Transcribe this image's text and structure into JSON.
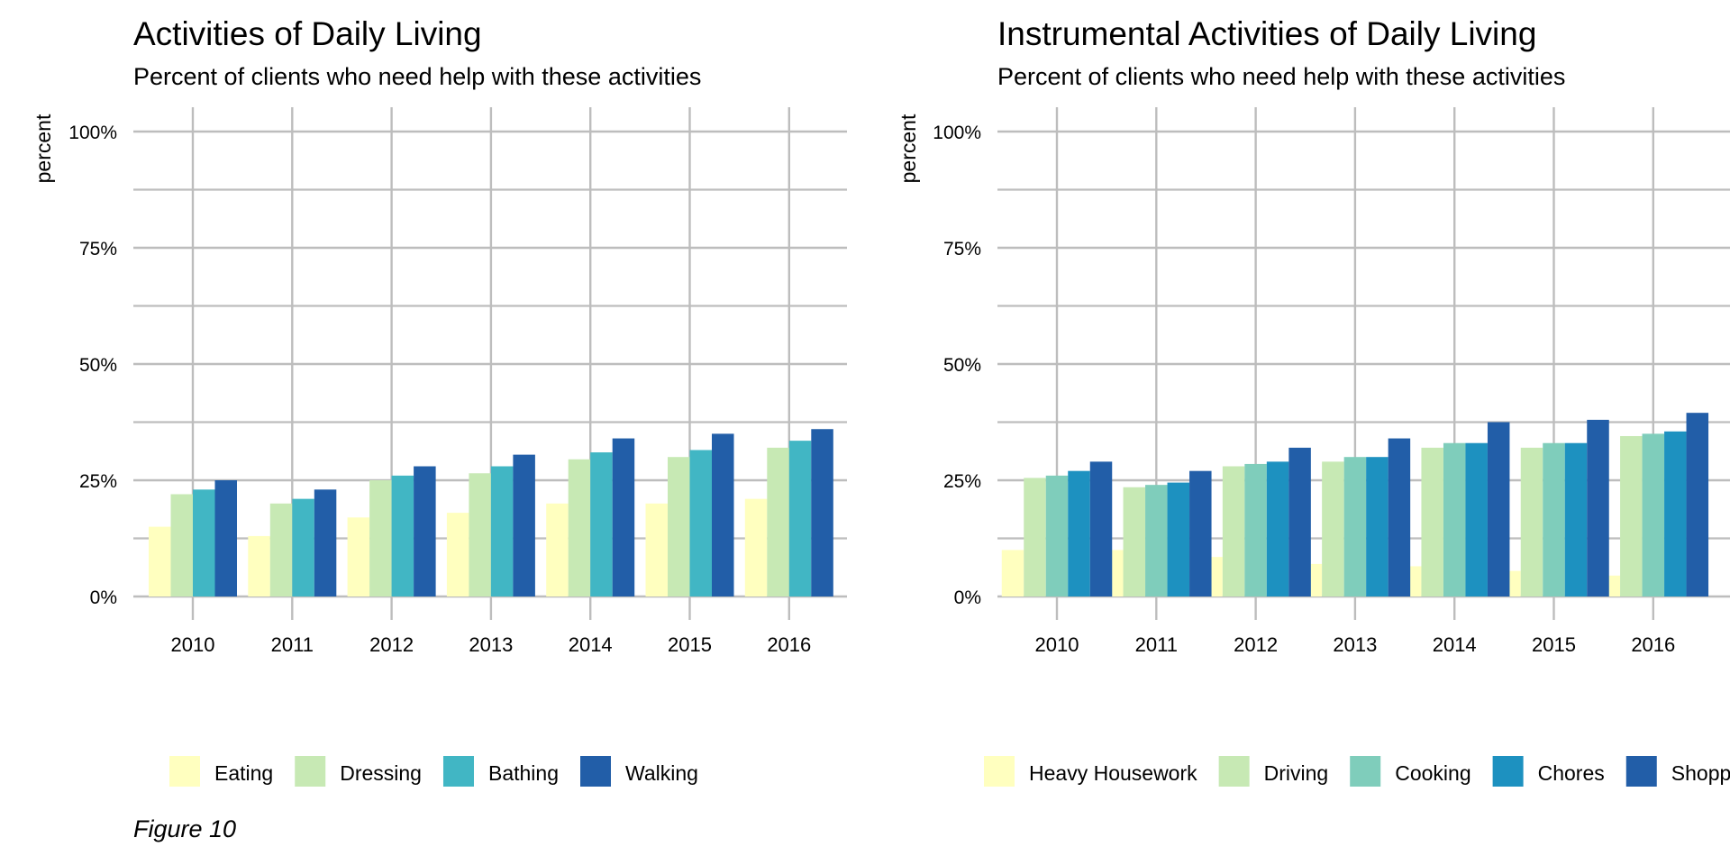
{
  "caption": "Figure 10",
  "chart_data": [
    {
      "type": "bar",
      "title": "Activities of Daily Living",
      "subtitle": "Percent of clients who need help with these activities",
      "xlabel": "",
      "ylabel": "percent",
      "ylim": [
        0,
        100
      ],
      "y_ticks": [
        "0%",
        "25%",
        "50%",
        "75%",
        "100%"
      ],
      "grid": true,
      "legend_position": "bottom",
      "categories": [
        "2010",
        "2011",
        "2012",
        "2013",
        "2014",
        "2015",
        "2016"
      ],
      "series": [
        {
          "name": "Eating",
          "color": "#ffffbf",
          "values": [
            15,
            13,
            17,
            18,
            20,
            20,
            21
          ]
        },
        {
          "name": "Dressing",
          "color": "#c7e9b4",
          "values": [
            22,
            20,
            25,
            26.5,
            29.5,
            30,
            32
          ]
        },
        {
          "name": "Bathing",
          "color": "#41b6c4",
          "values": [
            23,
            21,
            26,
            28,
            31,
            31.5,
            33.5
          ]
        },
        {
          "name": "Walking",
          "color": "#225ea8",
          "values": [
            25,
            23,
            28,
            30.5,
            34,
            35,
            36
          ]
        }
      ]
    },
    {
      "type": "bar",
      "title": "Instrumental Activities of Daily Living",
      "subtitle": "Percent of clients who need help with these activities",
      "xlabel": "",
      "ylabel": "percent",
      "ylim": [
        0,
        100
      ],
      "y_ticks": [
        "0%",
        "25%",
        "50%",
        "75%",
        "100%"
      ],
      "grid": true,
      "legend_position": "bottom",
      "categories": [
        "2010",
        "2011",
        "2012",
        "2013",
        "2014",
        "2015",
        "2016"
      ],
      "series": [
        {
          "name": "Heavy Housework",
          "color": "#ffffbf",
          "values": [
            10,
            10,
            8.5,
            7,
            6.5,
            5.5,
            4.5
          ]
        },
        {
          "name": "Driving",
          "color": "#c7e9b4",
          "values": [
            25.5,
            23.5,
            28,
            29,
            32,
            32,
            34.5
          ]
        },
        {
          "name": "Cooking",
          "color": "#7fcdbb",
          "values": [
            26,
            24,
            28.5,
            30,
            33,
            33,
            35
          ]
        },
        {
          "name": "Chores",
          "color": "#1d91c0",
          "values": [
            27,
            24.5,
            29,
            30,
            33,
            33,
            35.5
          ]
        },
        {
          "name": "Shopping",
          "color": "#225ea8",
          "values": [
            29,
            27,
            32,
            34,
            37.5,
            38,
            39.5
          ]
        }
      ]
    }
  ]
}
